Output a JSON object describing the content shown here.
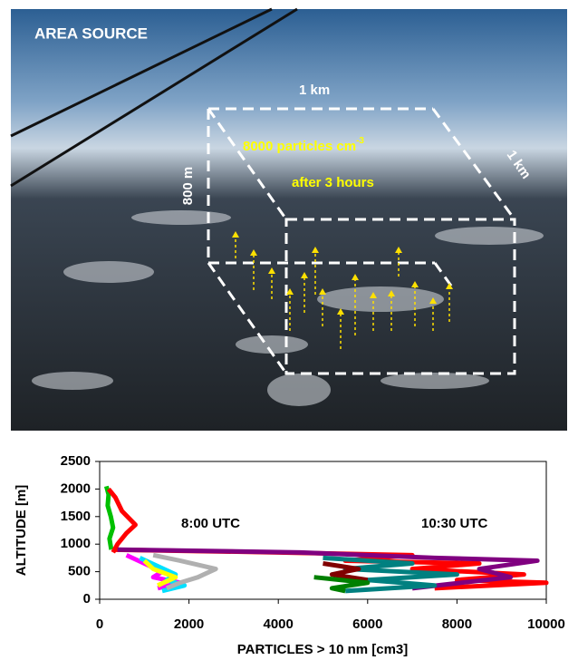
{
  "photo": {
    "label": "AREA SOURCE",
    "top_width": "1 km",
    "concentration": "8000 particles cm",
    "concentration_exponent": "-3",
    "duration": "after 3 hours",
    "height": "800 m",
    "depth": "1 km"
  },
  "chart_data": {
    "type": "line",
    "annotations": [
      "8:00 UTC",
      "10:30 UTC"
    ],
    "xlabel": "PARTICLES > 10 nm [cm3]",
    "ylabel": "ALTITUDE [m]",
    "xlim": [
      0,
      10000
    ],
    "xticks": [
      0,
      2000,
      4000,
      6000,
      8000,
      10000
    ],
    "ylim": [
      0,
      2500
    ],
    "yticks": [
      0,
      500,
      1000,
      1500,
      2000,
      2500
    ],
    "series": [
      {
        "color": "#00c000",
        "x": [
          150,
          200,
          180,
          250,
          300,
          220,
          260
        ],
        "values": [
          2050,
          1900,
          1700,
          1500,
          1300,
          1100,
          900
        ]
      },
      {
        "color": "#ff0000",
        "x": [
          200,
          350,
          500,
          800,
          600,
          400,
          300
        ],
        "values": [
          2000,
          1850,
          1600,
          1350,
          1200,
          1000,
          850
        ]
      },
      {
        "color": "#ff00ff",
        "x": [
          600,
          1000,
          1400,
          1200,
          1800,
          1300
        ],
        "values": [
          800,
          650,
          500,
          400,
          300,
          200
        ]
      },
      {
        "color": "#00e0ff",
        "x": [
          900,
          1300,
          1700,
          1500,
          1900,
          1400
        ],
        "values": [
          750,
          600,
          450,
          350,
          250,
          150
        ]
      },
      {
        "color": "#b0b0b0",
        "x": [
          1200,
          1800,
          2600,
          2200,
          1800,
          1500
        ],
        "values": [
          800,
          700,
          550,
          400,
          300,
          200
        ]
      },
      {
        "color": "#ffff00",
        "x": [
          1000,
          1200,
          1700,
          1300
        ],
        "values": [
          700,
          550,
          400,
          250
        ]
      },
      {
        "color": "#ff0000",
        "x": [
          300,
          4000,
          7000,
          5500,
          8500,
          7000,
          9500,
          8000,
          10000,
          7500
        ],
        "values": [
          900,
          850,
          800,
          700,
          650,
          550,
          450,
          350,
          300,
          200
        ]
      },
      {
        "color": "#800080",
        "x": [
          400,
          4500,
          7500,
          9800,
          8500,
          9200,
          7000
        ],
        "values": [
          900,
          850,
          750,
          700,
          550,
          400,
          200
        ]
      },
      {
        "color": "#008080",
        "x": [
          5000,
          7000,
          5500,
          8000,
          6000,
          7500,
          5500
        ],
        "values": [
          750,
          650,
          550,
          450,
          350,
          250,
          150
        ]
      },
      {
        "color": "#800000",
        "x": [
          5000,
          5800,
          5200,
          6000
        ],
        "values": [
          650,
          550,
          450,
          350
        ]
      },
      {
        "color": "#008000",
        "x": [
          4800,
          6000,
          5200,
          5500
        ],
        "values": [
          400,
          300,
          200,
          150
        ]
      }
    ]
  }
}
